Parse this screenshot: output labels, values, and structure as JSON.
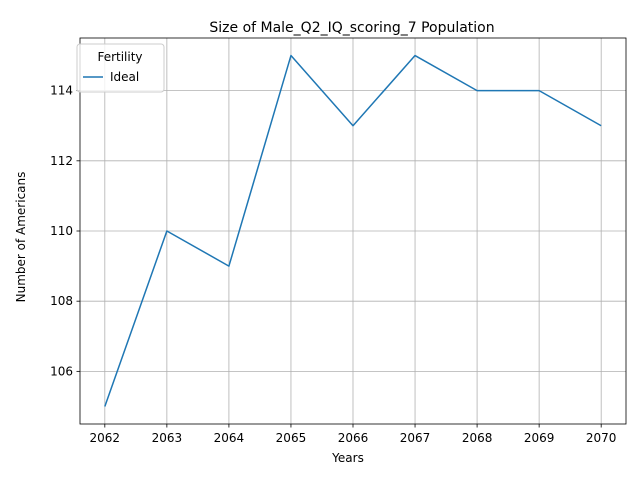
{
  "chart_data": {
    "type": "line",
    "title": "Size of Male_Q2_IQ_scoring_7 Population",
    "xlabel": "Years",
    "ylabel": "Number of Americans",
    "x": [
      2062,
      2063,
      2064,
      2065,
      2066,
      2067,
      2068,
      2069,
      2070
    ],
    "series": [
      {
        "name": "Ideal",
        "color": "#1f77b4",
        "values": [
          105,
          110,
          109,
          115,
          113,
          115,
          114,
          114,
          113
        ]
      }
    ],
    "xlim": [
      2061.6,
      2070.4
    ],
    "ylim": [
      104.5,
      115.5
    ],
    "yticks": [
      106,
      108,
      110,
      112,
      114
    ],
    "grid": true,
    "legend": {
      "title": "Fertility",
      "placement": "top-left"
    }
  }
}
